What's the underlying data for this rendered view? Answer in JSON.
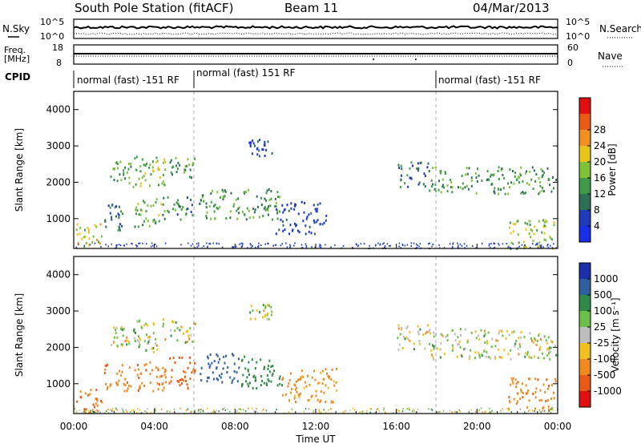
{
  "header": {
    "station": "South Pole Station (fitACF)",
    "beam": "Beam 11",
    "date": "04/Mar/2013"
  },
  "noise_panel": {
    "left_label": "N.Sky",
    "left_ticks": [
      "10^5",
      "10^0"
    ],
    "right_label": "N.Search",
    "right_ticks": [
      "10^5",
      "10^0"
    ]
  },
  "freq_panel": {
    "left_label_1": "Freq.",
    "left_label_2": "[MHz]",
    "left_ticks": [
      "18",
      "8"
    ],
    "right_label": "Nave",
    "right_ticks": [
      "60",
      "0"
    ]
  },
  "cpid": {
    "label": "CPID",
    "segments": [
      {
        "start_hour": 0,
        "end_hour": 6,
        "text": "normal (fast) -151 RF"
      },
      {
        "start_hour": 6,
        "end_hour": 18,
        "text": "normal (fast) 151 RF"
      },
      {
        "start_hour": 18,
        "end_hour": 24,
        "text": "normal (fast) -151 RF"
      }
    ]
  },
  "axes": {
    "ylabel": "Slant Range [km]",
    "xlabel": "Time UT",
    "xticks": [
      "00:00",
      "04:00",
      "08:00",
      "12:00",
      "16:00",
      "20:00",
      "00:00"
    ],
    "yticks": [
      "1000",
      "2000",
      "3000",
      "4000"
    ]
  },
  "power_colorbar": {
    "label": "Power [dB]",
    "ticks": [
      "4",
      "8",
      "12",
      "16",
      "20",
      "24",
      "28"
    ],
    "colors": [
      "#1a2fe6",
      "#1f3cb6",
      "#2f6f55",
      "#3f9a4a",
      "#7fc23a",
      "#e8c51a",
      "#f09020",
      "#e85a18",
      "#e01010"
    ]
  },
  "velocity_colorbar": {
    "label": "Velocity [m s⁻¹]",
    "ticks": [
      "1000",
      "500",
      "100",
      "25",
      "-25",
      "-100",
      "-500",
      "-1000"
    ],
    "colors": [
      "#1a2fa8",
      "#2f5fa0",
      "#2f8a4a",
      "#6cc04a",
      "#bdbdbd",
      "#f0c020",
      "#f08a20",
      "#e85a18",
      "#e01010"
    ]
  },
  "chart_data": {
    "type": "heatmap",
    "title": "South Pole Station (fitACF) Beam 11",
    "xlabel": "Time UT",
    "ylabel": "Slant Range [km]",
    "xlim": [
      0,
      24
    ],
    "ylim": [
      180,
      4500
    ],
    "power_blobs": [
      {
        "t0": 0.1,
        "t1": 1.4,
        "r0": 200,
        "r1": 900,
        "v": 20
      },
      {
        "t0": 1.5,
        "t1": 2.4,
        "r0": 700,
        "r1": 1500,
        "v": 10
      },
      {
        "t0": 1.8,
        "t1": 2.8,
        "r0": 2000,
        "r1": 2600,
        "v": 14
      },
      {
        "t0": 2.9,
        "t1": 4.6,
        "r0": 1900,
        "r1": 2800,
        "v": 18
      },
      {
        "t0": 3.0,
        "t1": 4.4,
        "r0": 800,
        "r1": 1600,
        "v": 16
      },
      {
        "t0": 4.7,
        "t1": 6.0,
        "r0": 2150,
        "r1": 2700,
        "v": 14
      },
      {
        "t0": 4.3,
        "t1": 5.9,
        "r0": 1000,
        "r1": 1650,
        "v": 12
      },
      {
        "t0": 6.2,
        "t1": 10.3,
        "r0": 1000,
        "r1": 1850,
        "v": 14
      },
      {
        "t0": 8.6,
        "t1": 9.8,
        "r0": 2750,
        "r1": 3200,
        "v": 6
      },
      {
        "t0": 10.0,
        "t1": 12.5,
        "r0": 600,
        "r1": 1500,
        "v": 5
      },
      {
        "t0": 16.0,
        "t1": 17.6,
        "r0": 1900,
        "r1": 2600,
        "v": 10
      },
      {
        "t0": 17.6,
        "t1": 23.9,
        "r0": 1700,
        "r1": 2450,
        "v": 14
      },
      {
        "t0": 21.5,
        "t1": 23.9,
        "r0": 200,
        "r1": 1000,
        "v": 18
      }
    ],
    "velocity_blobs": [
      {
        "t0": 0.1,
        "t1": 1.4,
        "r0": 200,
        "r1": 900,
        "v": -500
      },
      {
        "t0": 1.5,
        "t1": 2.8,
        "r0": 800,
        "r1": 1600,
        "v": -400
      },
      {
        "t0": 1.8,
        "t1": 2.8,
        "r0": 2000,
        "r1": 2600,
        "v": 0
      },
      {
        "t0": 2.9,
        "t1": 4.6,
        "r0": 1900,
        "r1": 2800,
        "v": 0
      },
      {
        "t0": 3.0,
        "t1": 4.6,
        "r0": 800,
        "r1": 1700,
        "v": -450
      },
      {
        "t0": 4.6,
        "t1": 6.0,
        "r0": 900,
        "r1": 1750,
        "v": -600
      },
      {
        "t0": 4.7,
        "t1": 6.0,
        "r0": 2150,
        "r1": 2800,
        "v": 0
      },
      {
        "t0": 6.2,
        "t1": 8.2,
        "r0": 1050,
        "r1": 1850,
        "v": 800
      },
      {
        "t0": 8.2,
        "t1": 10.3,
        "r0": 900,
        "r1": 1800,
        "v": 300
      },
      {
        "t0": 8.7,
        "t1": 9.8,
        "r0": 2800,
        "r1": 3200,
        "v": 0
      },
      {
        "t0": 10.3,
        "t1": 13.0,
        "r0": 500,
        "r1": 1500,
        "v": -200
      },
      {
        "t0": 16.0,
        "t1": 17.6,
        "r0": 1950,
        "r1": 2650,
        "v": 0
      },
      {
        "t0": 17.6,
        "t1": 23.9,
        "r0": 1700,
        "r1": 2550,
        "v": 0
      },
      {
        "t0": 21.5,
        "t1": 23.9,
        "r0": 300,
        "r1": 1200,
        "v": -450
      }
    ]
  }
}
